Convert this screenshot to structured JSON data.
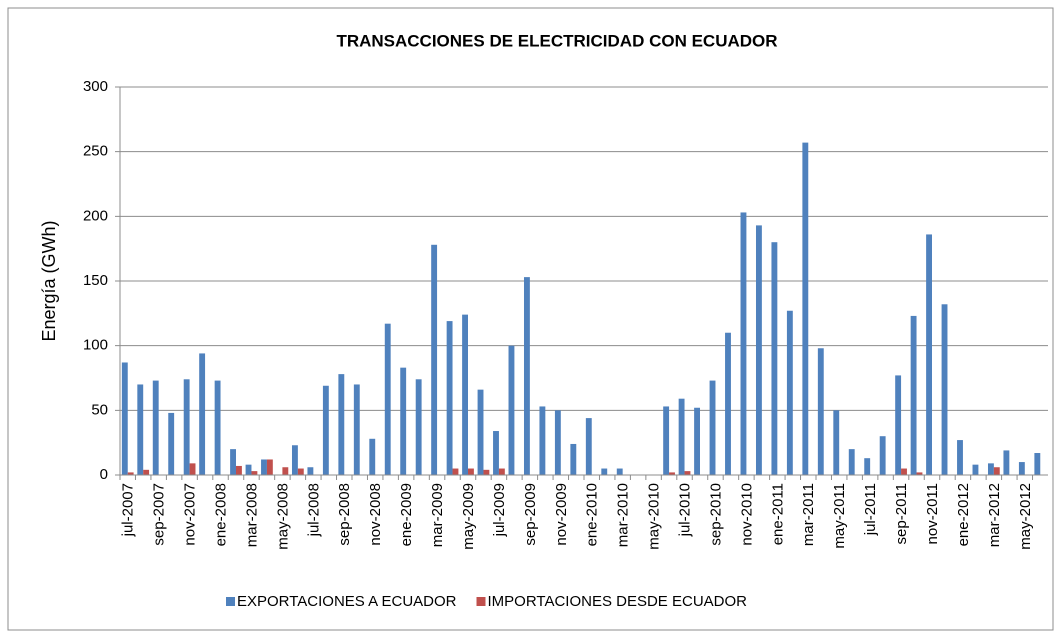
{
  "chart_data": {
    "type": "bar",
    "title": "TRANSACCIONES DE ELECTRICIDAD CON ECUADOR",
    "y_label": "Energía (GWh)",
    "categories": [
      "jul-2007",
      null,
      "sep-2007",
      null,
      "nov-2007",
      null,
      "ene-2008",
      null,
      "mar-2008",
      null,
      "may-2008",
      null,
      "jul-2008",
      null,
      "sep-2008",
      null,
      "nov-2008",
      null,
      "ene-2009",
      null,
      "mar-2009",
      null,
      "may-2009",
      null,
      "jul-2009",
      null,
      "sep-2009",
      null,
      "nov-2009",
      null,
      "ene-2010",
      null,
      "mar-2010",
      null,
      "may-2010",
      null,
      "jul-2010",
      null,
      "sep-2010",
      null,
      "nov-2010",
      null,
      "ene-2011",
      null,
      "mar-2011",
      null,
      "may-2011",
      null,
      "jul-2011",
      null,
      "sep-2011",
      null,
      "nov-2011",
      null,
      "ene-2012",
      null,
      "mar-2012",
      null,
      "may-2012",
      null
    ],
    "series": [
      {
        "name": "EXPORTACIONES A ECUADOR",
        "color": "#4f81bd",
        "values": [
          87,
          70,
          73,
          48,
          74,
          94,
          73,
          20,
          8,
          12,
          0,
          23,
          6,
          69,
          78,
          70,
          28,
          117,
          83,
          74,
          178,
          119,
          124,
          66,
          34,
          100,
          153,
          53,
          50,
          24,
          44,
          5,
          5,
          0,
          0,
          53,
          59,
          52,
          73,
          110,
          203,
          193,
          180,
          127,
          257,
          98,
          50,
          20,
          13,
          30,
          77,
          123,
          186,
          132,
          27,
          8,
          9,
          19,
          10,
          17
        ]
      },
      {
        "name": "IMPORTACIONES DESDE ECUADOR",
        "color": "#c0504d",
        "values": [
          2,
          4,
          0,
          0,
          9,
          0,
          0,
          7,
          3,
          12,
          6,
          5,
          0,
          0,
          0,
          0,
          0,
          0,
          0,
          0,
          0,
          5,
          5,
          4,
          5,
          0,
          0,
          0,
          0,
          0,
          0,
          0,
          0,
          0,
          0,
          2,
          3,
          0,
          0,
          0,
          0,
          0,
          0,
          0,
          0,
          0,
          0,
          0,
          0,
          0,
          5,
          2,
          0,
          0,
          0,
          0,
          6,
          0,
          0,
          0
        ]
      }
    ],
    "ylim": [
      0,
      300
    ],
    "yticks": [
      0,
      50,
      100,
      150,
      200,
      250,
      300
    ],
    "grid": true,
    "legend": "bottom"
  }
}
